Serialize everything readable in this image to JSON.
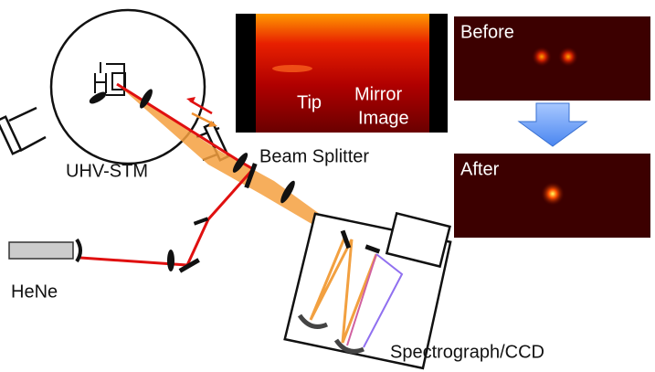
{
  "labels": {
    "chamber": "UHV-STM",
    "laser": "HeNe",
    "beam_splitter": "Beam Splitter",
    "spectrograph": "Spectrograph/CCD"
  },
  "stm_image": {
    "tip": "Tip",
    "mirror_image": [
      "Mirror",
      "Image"
    ]
  },
  "panels": {
    "before": "Before",
    "after": "After"
  }
}
